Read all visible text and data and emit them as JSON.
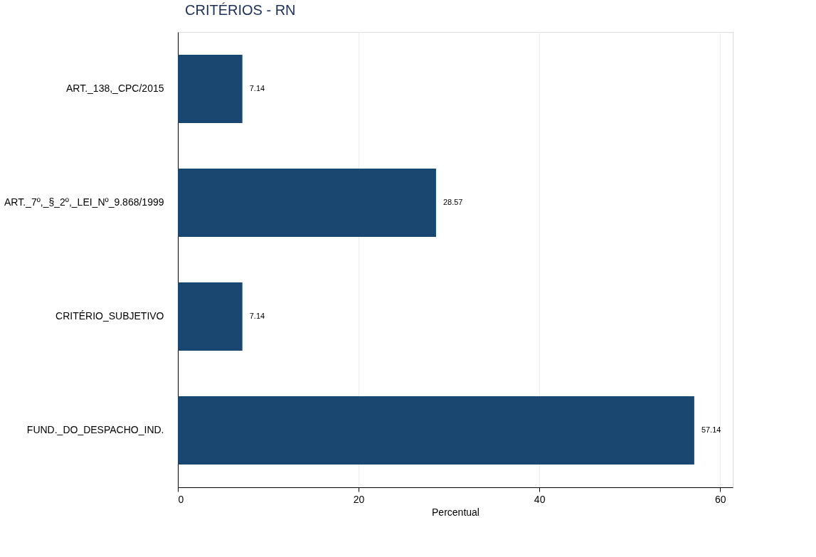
{
  "chart_data": {
    "type": "bar",
    "orientation": "horizontal",
    "title": "CRITÉRIOS - RN",
    "xlabel": "Percentual",
    "categories": [
      "ART._138,_CPC/2015",
      "ART._7º,_§_2º,_LEI_Nº_9.868/1999",
      "CRITÉRIO_SUBJETIVO",
      "FUND._DO_DESPACHO_IND."
    ],
    "values": [
      7.14,
      28.57,
      7.14,
      57.14
    ],
    "color": "#1a476f",
    "xlim": [
      0,
      61.4
    ],
    "xticks": [
      0,
      20,
      40,
      60
    ],
    "grid": "x",
    "data_labels": true
  }
}
